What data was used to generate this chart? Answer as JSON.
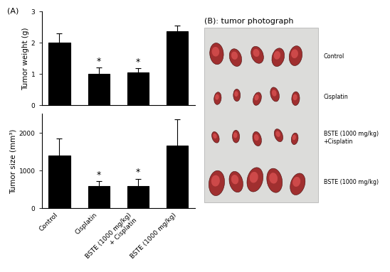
{
  "weight_means": [
    2.0,
    1.0,
    1.05,
    2.35
  ],
  "weight_errors": [
    0.28,
    0.2,
    0.12,
    0.18
  ],
  "weight_ylim": [
    0,
    3
  ],
  "weight_yticks": [
    0,
    1,
    2,
    3
  ],
  "weight_ylabel": "Tumor weight (g)",
  "size_means": [
    1400,
    580,
    580,
    1650
  ],
  "size_errors": [
    450,
    130,
    200,
    700
  ],
  "size_ylim": [
    0,
    2500
  ],
  "size_yticks": [
    0,
    1000,
    2000
  ],
  "size_ylabel": "Tumor size (mm³)",
  "categories": [
    "Control",
    "Cisplatin",
    "BSTE (1000 mg/kg)\n+ Cisplatin",
    "BSTE (1000 mg/kg)"
  ],
  "sig_bars": [
    1,
    2
  ],
  "bar_color": "#000000",
  "bar_width": 0.55,
  "panel_a_label": "(A)",
  "panel_b_label": "(B): tumor photograph",
  "legend_labels": [
    "Control",
    "Cisplatin",
    "BSTE (1000 mg/kg)\n+Cisplatin",
    "BSTE (1000 mg/kg)"
  ],
  "figure_width": 5.39,
  "figure_height": 3.08,
  "bg_color": "#ffffff",
  "tick_fontsize": 6.5,
  "ylabel_fontsize": 7.5,
  "label_fontsize": 8
}
